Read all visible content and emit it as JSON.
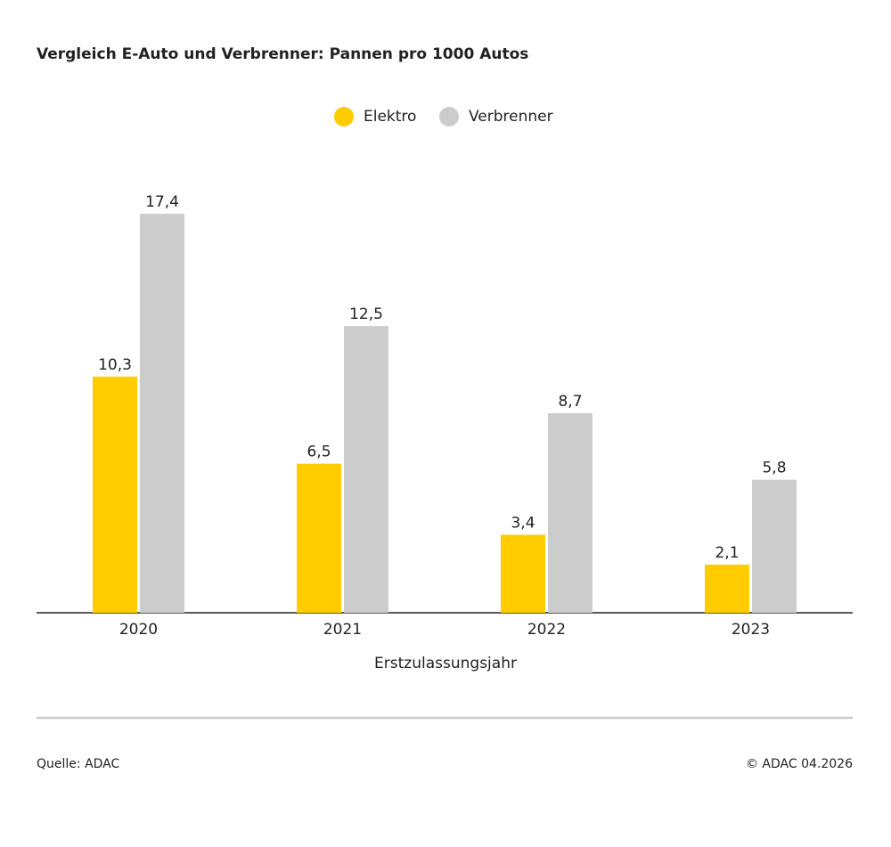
{
  "chart_data": {
    "type": "bar",
    "title": "Vergleich E-Auto und Verbrenner: Pannen pro 1000 Autos",
    "xlabel": "Erstzulassungsjahr",
    "categories": [
      "2020",
      "2021",
      "2022",
      "2023"
    ],
    "series": [
      {
        "name": "Elektro",
        "color": "#ffcc00",
        "values": [
          10.3,
          6.5,
          3.4,
          2.1
        ],
        "value_labels": [
          "10,3",
          "6,5",
          "3,4",
          "2,1"
        ]
      },
      {
        "name": "Verbrenner",
        "color": "#cccccc",
        "values": [
          17.4,
          12.5,
          8.7,
          5.8
        ],
        "value_labels": [
          "17,4",
          "12,5",
          "8,7",
          "5,8"
        ]
      }
    ],
    "source": "Quelle: ADAC",
    "credit": "© ADAC 04.2026"
  }
}
